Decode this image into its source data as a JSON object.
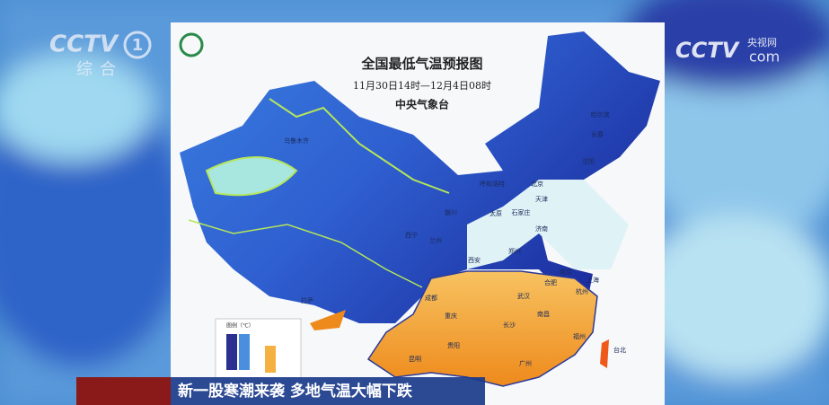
{
  "channel": {
    "logo": "CCTV",
    "number": "1",
    "name": "综合"
  },
  "watermark": {
    "logo": "CCTV",
    "site": "央视网",
    "suffix": "com"
  },
  "map": {
    "title": "全国最低气温预报图",
    "period": "11月30日14时—12月4日08时",
    "source": "中央气象台",
    "legend_title": "图例（℃）",
    "cities": [
      "乌鲁木齐",
      "哈尔滨",
      "长春",
      "沈阳",
      "呼和浩特",
      "北京",
      "天津",
      "银川",
      "太原",
      "石家庄",
      "西宁",
      "兰州",
      "济南",
      "郑州",
      "西安",
      "南京",
      "上海",
      "合肥",
      "成都",
      "武汉",
      "杭州",
      "重庆",
      "长沙",
      "南昌",
      "福州",
      "贵阳",
      "拉萨",
      "昆明",
      "广州",
      "台北"
    ]
  },
  "caption": "新一股寒潮来袭 多地气温大幅下跌"
}
